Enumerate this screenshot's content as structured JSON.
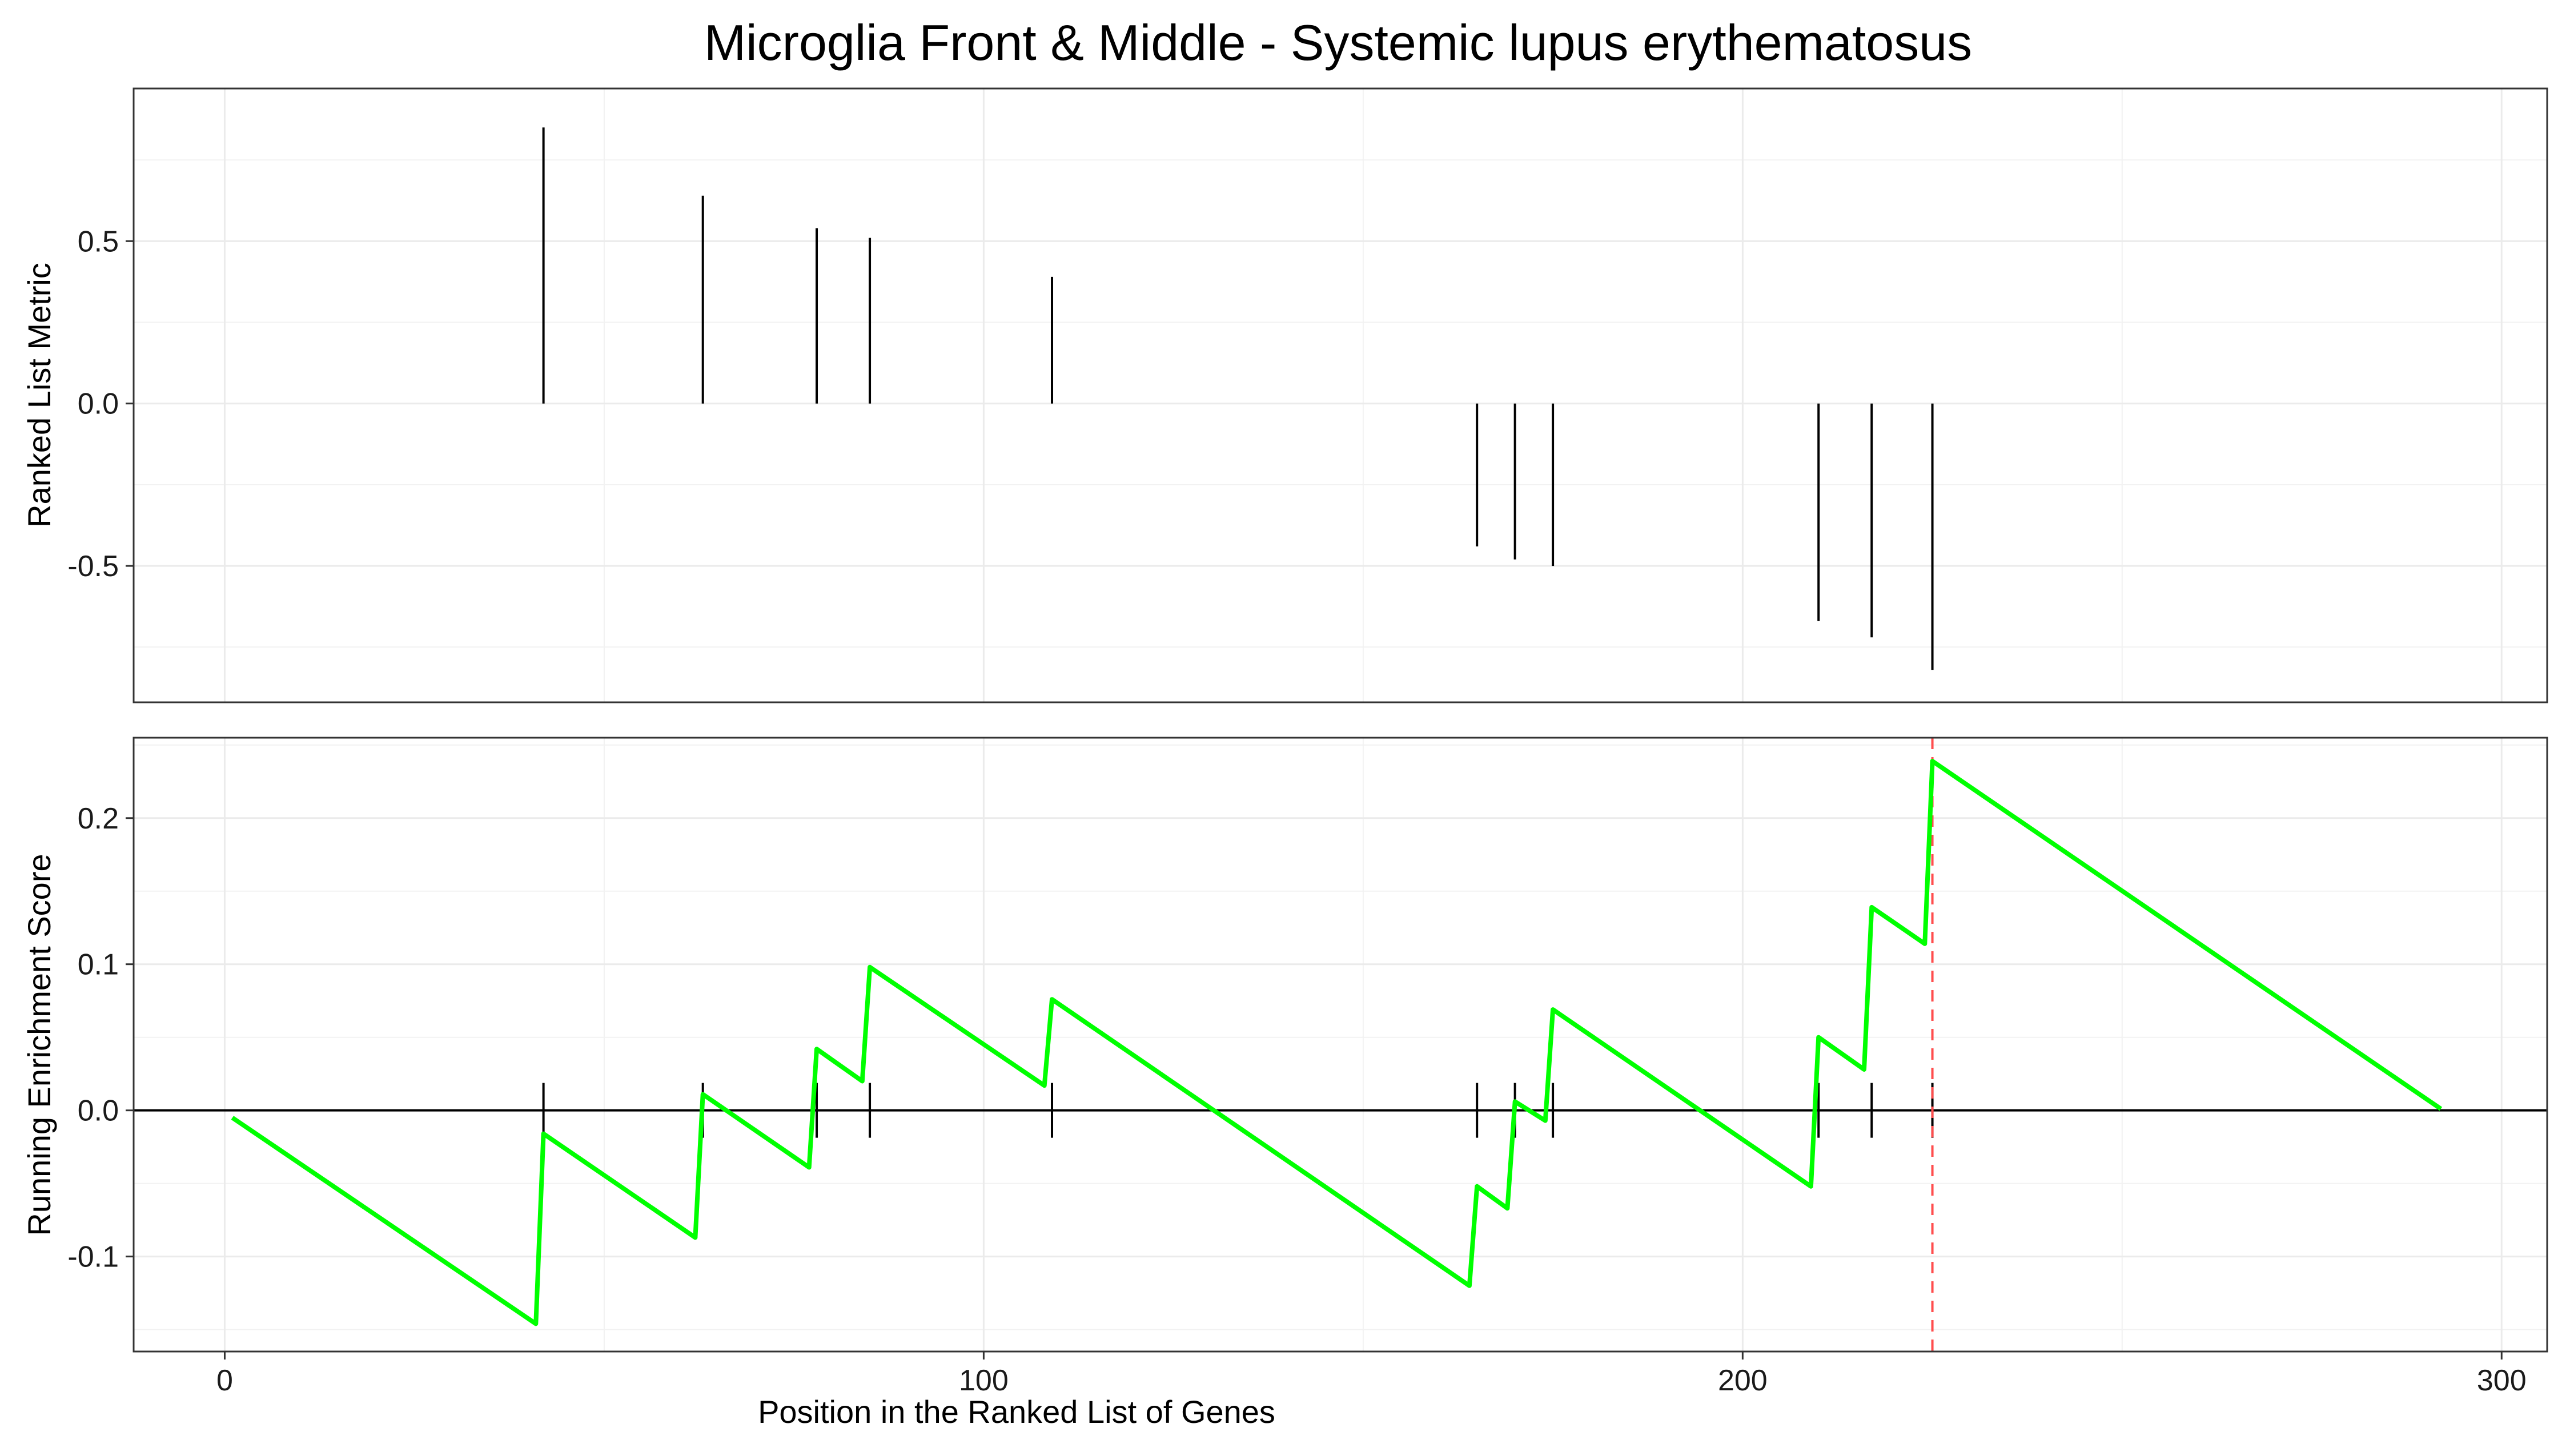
{
  "colors": {
    "es_curve": "#00ff00",
    "max_line": "#ff4d4d",
    "bars": "#000000",
    "grid": "#ebebeb"
  },
  "chart_data": {
    "type": "line",
    "title": "Microglia Front & Middle - Systemic lupus erythematosus",
    "xlabel": "Position in the Ranked List of Genes",
    "xlim": [
      -12,
      306
    ],
    "x_ticks": [
      "0",
      "100",
      "200",
      "300"
    ],
    "x_tick_values": [
      0,
      100,
      200,
      300
    ],
    "panels": [
      {
        "name": "ranked_metric",
        "type": "bar",
        "ylabel": "Ranked List Metric",
        "ylim": [
          -0.92,
          0.97
        ],
        "y_ticks": [
          "0.5",
          "0.0",
          "-0.5"
        ],
        "y_tick_values": [
          0.5,
          0.0,
          -0.5
        ],
        "grid": true,
        "bars": [
          {
            "x": 42,
            "y": 0.85
          },
          {
            "x": 63,
            "y": 0.64
          },
          {
            "x": 78,
            "y": 0.54
          },
          {
            "x": 85,
            "y": 0.51
          },
          {
            "x": 109,
            "y": 0.39
          },
          {
            "x": 165,
            "y": -0.44
          },
          {
            "x": 170,
            "y": -0.48
          },
          {
            "x": 175,
            "y": -0.5
          },
          {
            "x": 210,
            "y": -0.67
          },
          {
            "x": 217,
            "y": -0.72
          },
          {
            "x": 225,
            "y": -0.82
          }
        ]
      },
      {
        "name": "running_enrichment",
        "type": "line",
        "ylabel": "Running Enrichment Score",
        "ylim": [
          -0.165,
          0.255
        ],
        "y_ticks": [
          "0.2",
          "0.1",
          "0.0",
          "-0.1"
        ],
        "y_tick_values": [
          0.2,
          0.1,
          0.0,
          -0.1
        ],
        "grid": true,
        "zero_line": 0,
        "max_es_position": 225,
        "hits": [
          42,
          63,
          78,
          85,
          109,
          165,
          170,
          175,
          210,
          217,
          225
        ],
        "x": [
          1,
          41,
          42,
          62,
          63,
          77,
          78,
          84,
          85,
          108,
          109,
          164,
          165,
          169,
          170,
          174,
          175,
          209,
          210,
          216,
          217,
          224,
          225,
          292
        ],
        "y": [
          -0.005,
          -0.146,
          -0.016,
          -0.087,
          0.011,
          -0.039,
          0.042,
          0.02,
          0.098,
          0.017,
          0.076,
          -0.12,
          -0.052,
          -0.067,
          0.006,
          -0.007,
          0.069,
          -0.052,
          0.05,
          0.028,
          0.139,
          0.114,
          0.239,
          0.001
        ]
      }
    ]
  }
}
